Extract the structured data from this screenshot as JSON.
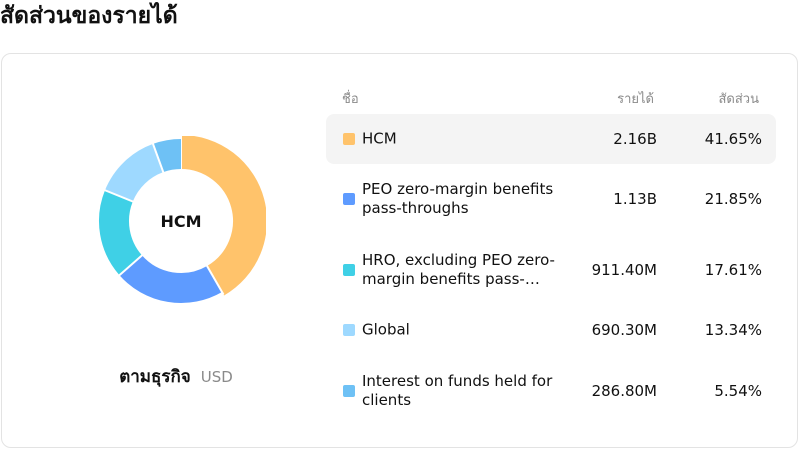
{
  "page": {
    "title": "สัดส่วนของรายได้"
  },
  "table": {
    "headers": {
      "name": "ชื่อ",
      "revenue": "รายได้",
      "share": "สัดส่วน"
    },
    "rows": [
      {
        "name": "HCM",
        "revenue": "2.16B",
        "share": "41.65%",
        "color": "#FFC36B",
        "active": true
      },
      {
        "name": "PEO zero-margin benefits pass-throughs",
        "revenue": "1.13B",
        "share": "21.85%",
        "color": "#5E9BFF",
        "active": false
      },
      {
        "name": "HRO, excluding PEO zero-margin benefits pass-throughs",
        "revenue": "911.40M",
        "share": "17.61%",
        "color": "#3FD0E6",
        "active": false
      },
      {
        "name": "Global",
        "revenue": "690.30M",
        "share": "13.34%",
        "color": "#9ED9FF",
        "active": false
      },
      {
        "name": "Interest on funds held for clients",
        "revenue": "286.80M",
        "share": "5.54%",
        "color": "#6EC1F5",
        "active": false
      }
    ]
  },
  "chart": {
    "center_label": "HCM",
    "caption_title": "ตามธุรกิจ",
    "caption_unit": "USD"
  },
  "chart_data": {
    "type": "pie",
    "title": "สัดส่วนของรายได้",
    "categories": [
      "HCM",
      "PEO zero-margin benefits pass-throughs",
      "HRO, excluding PEO zero-margin benefits pass-throughs",
      "Global",
      "Interest on funds held for clients"
    ],
    "values": [
      41.65,
      21.85,
      17.61,
      13.34,
      5.54
    ],
    "colors": [
      "#FFC36B",
      "#5E9BFF",
      "#3FD0E6",
      "#9ED9FF",
      "#6EC1F5"
    ],
    "highlighted": "HCM",
    "unit": "USD"
  }
}
